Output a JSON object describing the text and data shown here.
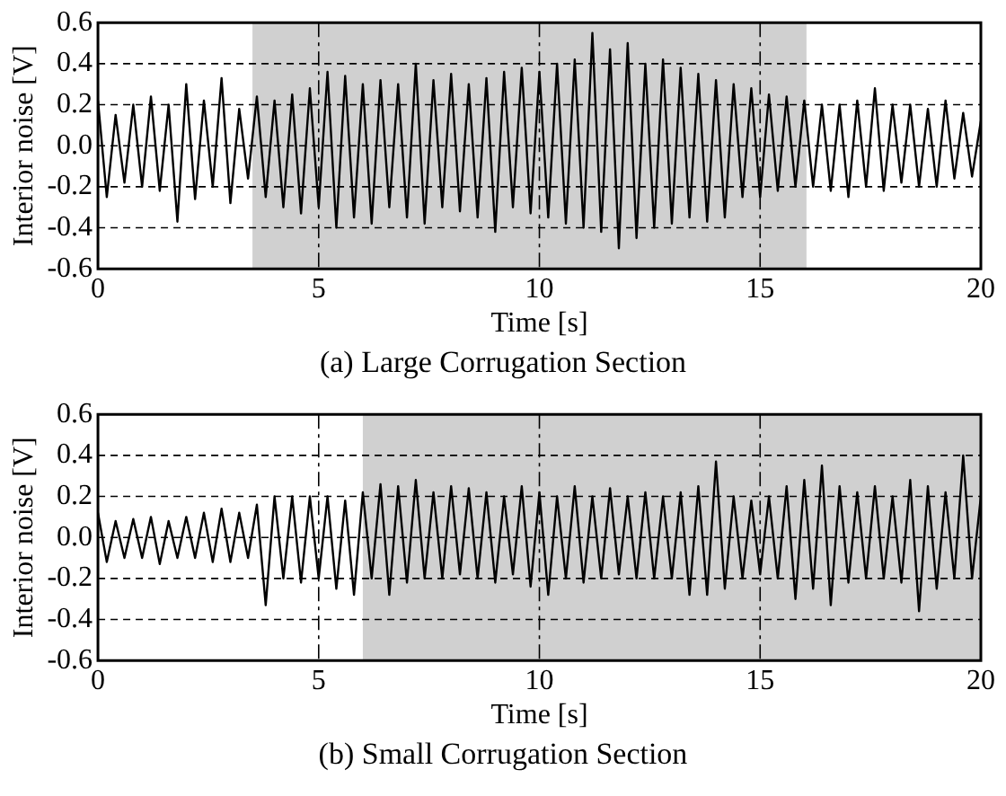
{
  "chart_data": [
    {
      "type": "line",
      "xlabel": "Time [s]",
      "ylabel": "Interior noise [V]",
      "annotations": [
        "(a) Large Corrugation Section"
      ],
      "marker": "none",
      "grid": true,
      "legend": false,
      "xlim": [
        0,
        20
      ],
      "xticks": [
        0,
        5,
        10,
        15,
        20
      ],
      "ylim": [
        -0.6,
        0.6
      ],
      "yticks": [
        -0.6,
        -0.4,
        -0.2,
        {
          "value": 0,
          "label": "0.0"
        },
        0.2,
        0.4,
        0.6
      ],
      "bands": [
        {
          "axis": "x",
          "from": 3.5,
          "to": 16.05,
          "color": "#d0d0d0"
        }
      ],
      "x": [
        0,
        0.2,
        0.4,
        0.6,
        0.8,
        1,
        1.2,
        1.4,
        1.6,
        1.8,
        2,
        2.2,
        2.4,
        2.6,
        2.8,
        3,
        3.2,
        3.4,
        3.6,
        3.8,
        4,
        4.2,
        4.4,
        4.6,
        4.8,
        5,
        5.2,
        5.4,
        5.6,
        5.8,
        6,
        6.2,
        6.4,
        6.6,
        6.8,
        7,
        7.2,
        7.4,
        7.6,
        7.8,
        8,
        8.2,
        8.4,
        8.6,
        8.8,
        9,
        9.2,
        9.4,
        9.6,
        9.8,
        10,
        10.2,
        10.4,
        10.6,
        10.8,
        11,
        11.2,
        11.4,
        11.6,
        11.8,
        12,
        12.2,
        12.4,
        12.6,
        12.8,
        13,
        13.2,
        13.4,
        13.6,
        13.8,
        14,
        14.2,
        14.4,
        14.6,
        14.8,
        15,
        15.2,
        15.4,
        15.6,
        15.8,
        16,
        16.2,
        16.4,
        16.6,
        16.8,
        17,
        17.2,
        17.4,
        17.6,
        17.8,
        18,
        18.2,
        18.4,
        18.6,
        18.8,
        19,
        19.2,
        19.4,
        19.6,
        19.8,
        20
      ],
      "series": [
        {
          "color": "#000000",
          "values": [
            0.22,
            -0.25,
            0.15,
            -0.18,
            0.2,
            -0.2,
            0.24,
            -0.22,
            0.2,
            -0.37,
            0.3,
            -0.26,
            0.22,
            -0.2,
            0.33,
            -0.28,
            0.18,
            -0.16,
            0.24,
            -0.25,
            0.22,
            -0.3,
            0.25,
            -0.33,
            0.28,
            -0.3,
            0.36,
            -0.4,
            0.34,
            -0.35,
            0.3,
            -0.38,
            0.32,
            -0.3,
            0.3,
            -0.35,
            0.4,
            -0.38,
            0.32,
            -0.3,
            0.35,
            -0.32,
            0.3,
            -0.35,
            0.33,
            -0.42,
            0.36,
            -0.3,
            0.38,
            -0.33,
            0.36,
            -0.35,
            0.4,
            -0.38,
            0.42,
            -0.4,
            0.55,
            -0.42,
            0.47,
            -0.5,
            0.5,
            -0.45,
            0.4,
            -0.4,
            0.42,
            -0.38,
            0.38,
            -0.35,
            0.35,
            -0.37,
            0.32,
            -0.35,
            0.3,
            -0.25,
            0.28,
            -0.25,
            0.25,
            -0.22,
            0.24,
            -0.2,
            0.22,
            -0.2,
            0.2,
            -0.22,
            0.2,
            -0.25,
            0.22,
            -0.2,
            0.28,
            -0.22,
            0.2,
            -0.18,
            0.2,
            -0.2,
            0.18,
            -0.2,
            0.22,
            -0.16,
            0.16,
            -0.15,
            0.12
          ]
        }
      ]
    },
    {
      "type": "line",
      "xlabel": "Time [s]",
      "ylabel": "Interior noise [V]",
      "annotations": [
        "(b) Small Corrugation Section"
      ],
      "marker": "none",
      "grid": true,
      "legend": false,
      "xlim": [
        0,
        20
      ],
      "xticks": [
        0,
        5,
        10,
        15,
        20
      ],
      "ylim": [
        -0.6,
        0.6
      ],
      "yticks": [
        -0.6,
        -0.4,
        -0.2,
        {
          "value": 0,
          "label": "0.0"
        },
        0.2,
        0.4,
        0.6
      ],
      "bands": [
        {
          "axis": "x",
          "from": 6,
          "to": 20,
          "color": "#d0d0d0"
        }
      ],
      "x": [
        0,
        0.2,
        0.4,
        0.6,
        0.8,
        1,
        1.2,
        1.4,
        1.6,
        1.8,
        2,
        2.2,
        2.4,
        2.6,
        2.8,
        3,
        3.2,
        3.4,
        3.6,
        3.8,
        4,
        4.2,
        4.4,
        4.6,
        4.8,
        5,
        5.2,
        5.4,
        5.6,
        5.8,
        6,
        6.2,
        6.4,
        6.6,
        6.8,
        7,
        7.2,
        7.4,
        7.6,
        7.8,
        8,
        8.2,
        8.4,
        8.6,
        8.8,
        9,
        9.2,
        9.4,
        9.6,
        9.8,
        10,
        10.2,
        10.4,
        10.6,
        10.8,
        11,
        11.2,
        11.4,
        11.6,
        11.8,
        12,
        12.2,
        12.4,
        12.6,
        12.8,
        13,
        13.2,
        13.4,
        13.6,
        13.8,
        14,
        14.2,
        14.4,
        14.6,
        14.8,
        15,
        15.2,
        15.4,
        15.6,
        15.8,
        16,
        16.2,
        16.4,
        16.6,
        16.8,
        17,
        17.2,
        17.4,
        17.6,
        17.8,
        18,
        18.2,
        18.4,
        18.6,
        18.8,
        19,
        19.2,
        19.4,
        19.6,
        19.8,
        20
      ],
      "series": [
        {
          "color": "#000000",
          "values": [
            0.12,
            -0.12,
            0.08,
            -0.1,
            0.09,
            -0.1,
            0.1,
            -0.13,
            0.08,
            -0.1,
            0.1,
            -0.1,
            0.12,
            -0.12,
            0.14,
            -0.12,
            0.12,
            -0.1,
            0.16,
            -0.33,
            0.2,
            -0.2,
            0.2,
            -0.22,
            0.2,
            -0.2,
            0.2,
            -0.25,
            0.18,
            -0.28,
            0.22,
            -0.2,
            0.26,
            -0.28,
            0.25,
            -0.22,
            0.28,
            -0.2,
            0.22,
            -0.2,
            0.25,
            -0.18,
            0.24,
            -0.2,
            0.22,
            -0.22,
            0.2,
            -0.18,
            0.25,
            -0.24,
            0.22,
            -0.28,
            0.2,
            -0.2,
            0.25,
            -0.22,
            0.2,
            -0.2,
            0.24,
            -0.18,
            0.2,
            -0.2,
            0.22,
            -0.2,
            0.2,
            -0.2,
            0.22,
            -0.28,
            0.25,
            -0.28,
            0.37,
            -0.25,
            0.2,
            -0.2,
            0.18,
            -0.18,
            0.2,
            -0.2,
            0.25,
            -0.3,
            0.28,
            -0.25,
            0.35,
            -0.33,
            0.25,
            -0.22,
            0.22,
            -0.2,
            0.25,
            -0.2,
            0.2,
            -0.22,
            0.28,
            -0.36,
            0.25,
            -0.25,
            0.22,
            -0.2,
            0.4,
            -0.2,
            0.2
          ]
        }
      ]
    }
  ]
}
